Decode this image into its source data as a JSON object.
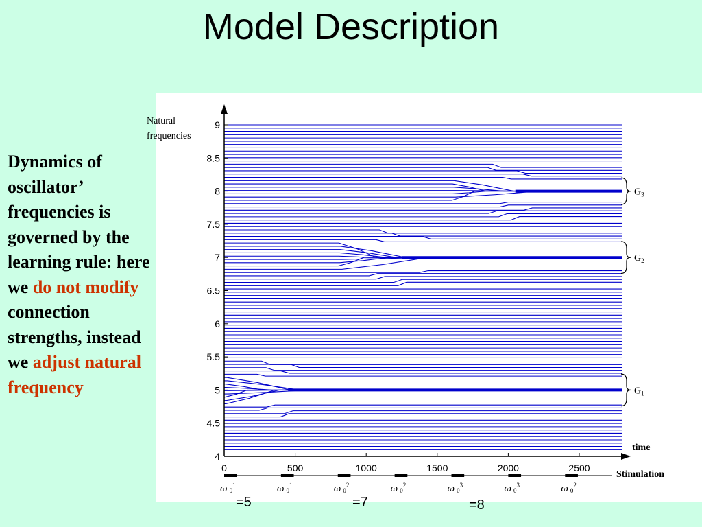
{
  "slide": {
    "title": "Model Description",
    "side_text": {
      "part1": "Dynamics of oscillator’ frequencies is governed by the learning rule: here we",
      "highlight1": "do not modify",
      "part2": "connection strengths, instead we",
      "highlight2": "adjust natural frequency"
    },
    "colors": {
      "background": "#ccffe6",
      "highlight": "#cc3300",
      "lines": "#0000cc"
    }
  },
  "chart_data": {
    "type": "line",
    "ylabel": "Natural frequencies",
    "xlabel": "time",
    "stimulation_label": "Stimulation",
    "xlim": [
      0,
      2800
    ],
    "ylim": [
      4,
      9
    ],
    "xticks": [
      0,
      500,
      1000,
      1500,
      2000,
      2500
    ],
    "xtick_labels": [
      "0",
      "500",
      "1000",
      "1500",
      "2000",
      "2500"
    ],
    "yticks": [
      4,
      4.5,
      5,
      5.5,
      6,
      6.5,
      7,
      7.5,
      8,
      8.5,
      9
    ],
    "ytick_labels": [
      "4",
      "4.5",
      "5",
      "5.5",
      "6",
      "6.5",
      "7",
      "7.5",
      "8",
      "8.5",
      "9"
    ],
    "oscillator_count": 100,
    "oscillator_freq_range": [
      4.1,
      9.0
    ],
    "clusters": [
      {
        "label": "G",
        "sub": "1",
        "center": 5.0,
        "range": [
          4.78,
          5.22
        ],
        "onset": 0,
        "settle": 650
      },
      {
        "label": "G",
        "sub": "2",
        "center": 7.0,
        "range": [
          6.78,
          7.22
        ],
        "onset": 800,
        "settle": 1450
      },
      {
        "label": "G",
        "sub": "3",
        "center": 8.0,
        "range": [
          7.82,
          8.18
        ],
        "onset": 1600,
        "settle": 2250
      }
    ],
    "stimulation": [
      {
        "start": 0,
        "end": 100,
        "omega": "ω",
        "sub": "0",
        "sup": "1"
      },
      {
        "start": 400,
        "end": 500,
        "omega": "ω",
        "sub": "0",
        "sup": "1"
      },
      {
        "start": 800,
        "end": 900,
        "omega": "ω",
        "sub": "0",
        "sup": "2"
      },
      {
        "start": 1200,
        "end": 1300,
        "omega": "ω",
        "sub": "0",
        "sup": "2"
      },
      {
        "start": 1600,
        "end": 1700,
        "omega": "ω",
        "sub": "0",
        "sup": "3"
      },
      {
        "start": 2000,
        "end": 2100,
        "omega": "ω",
        "sub": "0",
        "sup": "3"
      },
      {
        "start": 2400,
        "end": 2500,
        "omega": "ω",
        "sub": "0",
        "sup": "2"
      }
    ],
    "annotations": [
      "=5",
      "=7",
      "=8"
    ]
  }
}
